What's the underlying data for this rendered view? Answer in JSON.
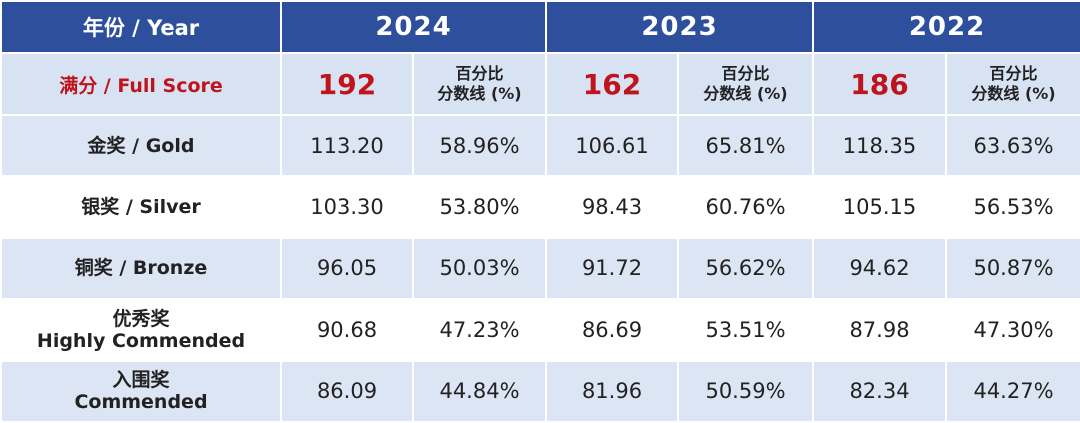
{
  "table": {
    "header": {
      "label": "年份 / Year",
      "years": [
        "2024",
        "2023",
        "2022"
      ]
    },
    "full_score": {
      "label": "满分 / Full Score",
      "scores": [
        "192",
        "162",
        "186"
      ],
      "pct_header": [
        "百分比",
        "分数线 (%)"
      ]
    },
    "rows": [
      {
        "label": [
          "金奖 / Gold"
        ],
        "cells": [
          "113.20",
          "58.96%",
          "106.61",
          "65.81%",
          "118.35",
          "63.63%"
        ]
      },
      {
        "label": [
          "银奖 / Silver"
        ],
        "cells": [
          "103.30",
          "53.80%",
          "98.43",
          "60.76%",
          "105.15",
          "56.53%"
        ]
      },
      {
        "label": [
          "铜奖 / Bronze"
        ],
        "cells": [
          "96.05",
          "50.03%",
          "91.72",
          "56.62%",
          "94.62",
          "50.87%"
        ]
      },
      {
        "label": [
          "优秀奖",
          "Highly Commended"
        ],
        "cells": [
          "90.68",
          "47.23%",
          "86.69",
          "53.51%",
          "87.98",
          "47.30%"
        ]
      },
      {
        "label": [
          "入围奖",
          "Commended"
        ],
        "cells": [
          "86.09",
          "44.84%",
          "81.96",
          "50.59%",
          "82.34",
          "44.27%"
        ]
      }
    ]
  }
}
